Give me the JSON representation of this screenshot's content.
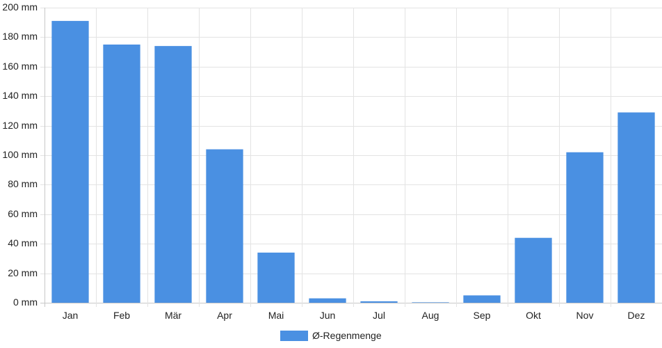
{
  "chart_data": {
    "type": "bar",
    "categories": [
      "Jan",
      "Feb",
      "Mär",
      "Apr",
      "Mai",
      "Jun",
      "Jul",
      "Aug",
      "Sep",
      "Okt",
      "Nov",
      "Dez"
    ],
    "series": [
      {
        "name": "Ø-Regenmenge",
        "values": [
          191,
          175,
          174,
          104,
          34,
          3,
          1,
          0.3,
          5,
          44,
          102,
          129
        ],
        "color": "#4a90e2"
      }
    ],
    "y_unit": "mm",
    "ylim": [
      0,
      200
    ],
    "yticks": [
      0,
      20,
      40,
      60,
      80,
      100,
      120,
      140,
      160,
      180,
      200
    ],
    "ytick_labels": [
      "0 mm",
      "20 mm",
      "40 mm",
      "60 mm",
      "80 mm",
      "100 mm",
      "120 mm",
      "140 mm",
      "160 mm",
      "180 mm",
      "200 mm"
    ],
    "grid": true,
    "legend_position": "bottom-center",
    "title": "",
    "xlabel": "",
    "ylabel": ""
  }
}
